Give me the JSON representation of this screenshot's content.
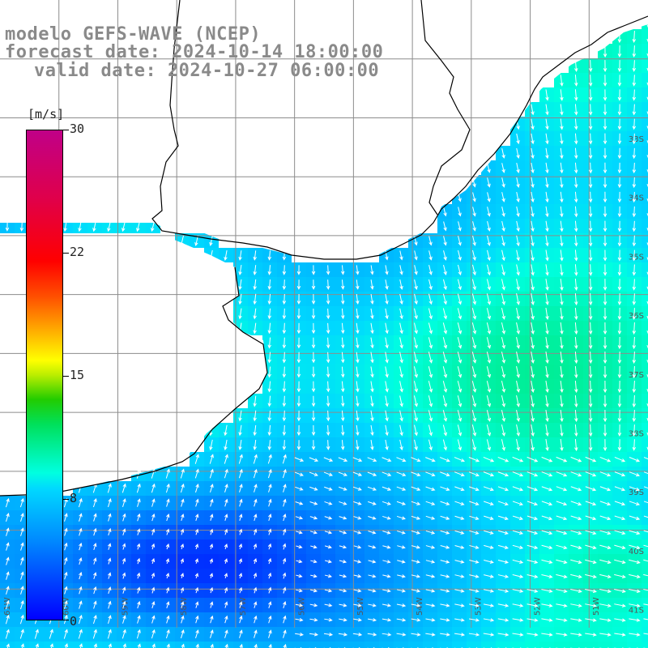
{
  "header": {
    "model_line": "modelo GEFS-WAVE (NCEP)",
    "forecast_line": "forecast date: 2024-10-14 18:00:00",
    "valid_line": "valid date: 2024-10-27 06:00:00"
  },
  "colorbar": {
    "unit": "[m/s]",
    "min": 0,
    "max": 30,
    "ticks": [
      "30",
      "22",
      "15",
      "8",
      "0"
    ]
  },
  "colors": {
    "land": "#ffffff",
    "coastline": "#000000",
    "grid": "#8c8c8c",
    "arrows": "#ffffff",
    "title": "#8a8a8a"
  },
  "map": {
    "lat_labels": [
      "33S",
      "34S",
      "35S",
      "36S",
      "37S",
      "38S",
      "39S",
      "40S",
      "41S"
    ],
    "lon_labels": [
      "61W",
      "60W",
      "59W",
      "58W",
      "57W",
      "56W",
      "55W",
      "54W",
      "53W",
      "52W",
      "51W"
    ]
  }
}
